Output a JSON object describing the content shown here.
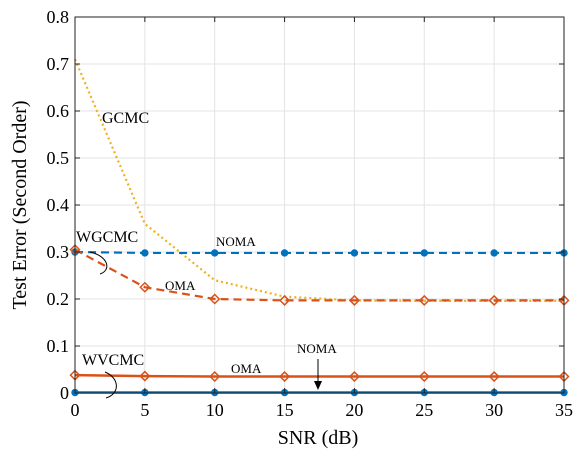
{
  "chart_data": {
    "type": "line",
    "xlabel": "SNR (dB)",
    "ylabel": "Test Error (Second Order)",
    "xlim": [
      0,
      35
    ],
    "ylim": [
      0,
      0.8
    ],
    "grid": true,
    "x": [
      0,
      5,
      10,
      15,
      20,
      25,
      30,
      35
    ],
    "xticks": [
      "0",
      "5",
      "10",
      "15",
      "20",
      "25",
      "30",
      "35"
    ],
    "yticks": [
      "0",
      "0.1",
      "0.2",
      "0.3",
      "0.4",
      "0.5",
      "0.6",
      "0.7",
      "0.8"
    ],
    "series": [
      {
        "style": "dotted",
        "color": "#EDB120",
        "marker": "none",
        "values": [
          0.71,
          0.36,
          0.24,
          0.205,
          0.197,
          0.196,
          0.196,
          0.196
        ]
      },
      {
        "style": "dashed",
        "color": "#0072BD",
        "marker": "circle",
        "values": [
          0.3,
          0.298,
          0.298,
          0.298,
          0.298,
          0.298,
          0.298,
          0.298
        ]
      },
      {
        "style": "dashed",
        "color": "#D95319",
        "marker": "diamond",
        "values": [
          0.305,
          0.225,
          0.2,
          0.197,
          0.197,
          0.197,
          0.197,
          0.197
        ]
      },
      {
        "style": "solid",
        "color": "#0072BD",
        "marker": "circle",
        "values": [
          0.001,
          0.001,
          0.001,
          0.001,
          0.001,
          0.001,
          0.001,
          0.001
        ]
      },
      {
        "style": "solid",
        "color": "#D95319",
        "marker": "diamond",
        "values": [
          0.038,
          0.036,
          0.035,
          0.035,
          0.035,
          0.035,
          0.035,
          0.035
        ]
      }
    ],
    "annotations": {
      "gcmc": "GCMC",
      "wgcmc": "WGCMC",
      "wvcmc": "WVCMC",
      "noma_upper": "NOMA",
      "oma_upper": "OMA",
      "oma_lower": "OMA",
      "noma_lower": "NOMA"
    }
  }
}
